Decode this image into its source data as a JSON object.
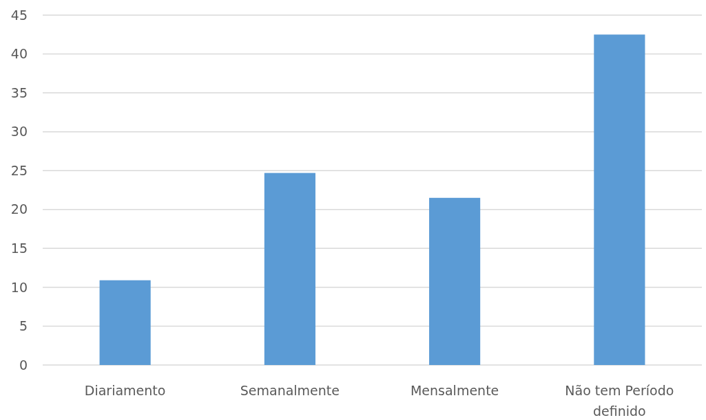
{
  "chart_data": {
    "type": "bar",
    "categories": [
      "Diariamento",
      "Semanalmente",
      "Mensalmente",
      "Não tem Período definido"
    ],
    "values": [
      10.9,
      24.7,
      21.5,
      42.5
    ],
    "color": "#5b9bd5",
    "ylim": [
      0,
      45
    ],
    "yticks": [
      0,
      5,
      10,
      15,
      20,
      25,
      30,
      35,
      40,
      45
    ],
    "grid": "y"
  }
}
